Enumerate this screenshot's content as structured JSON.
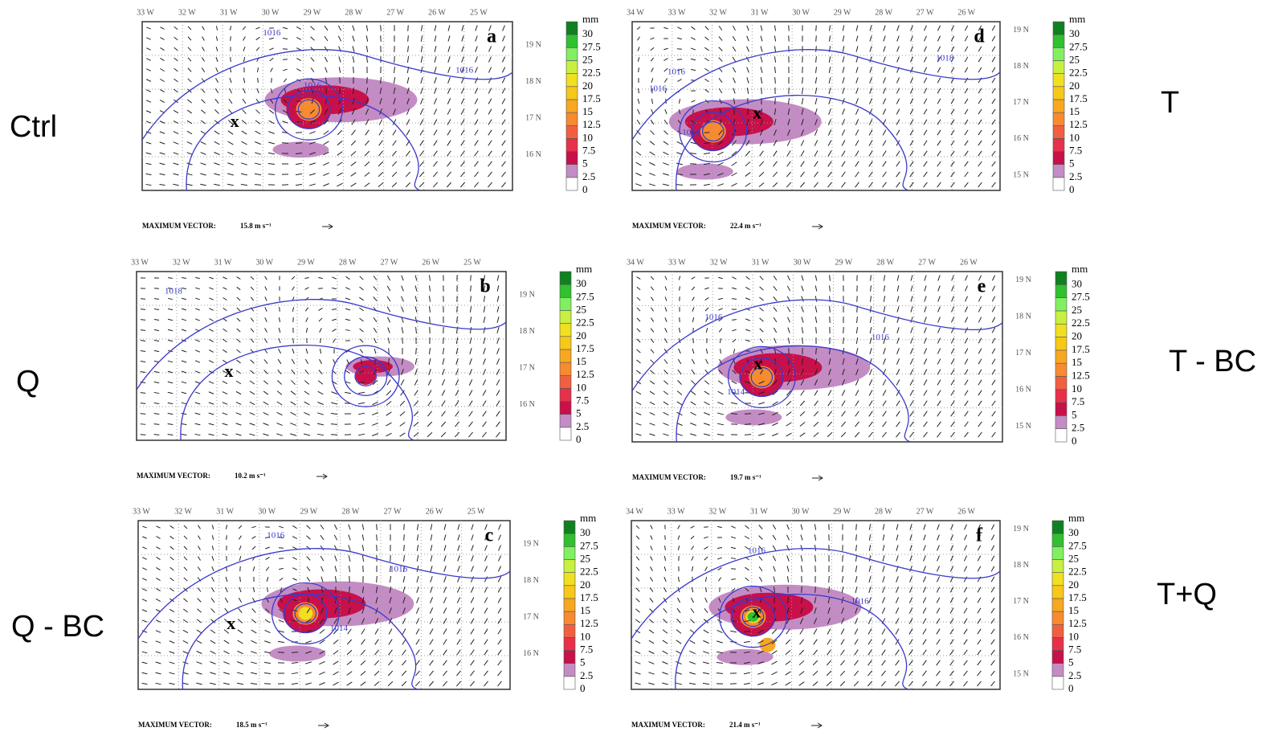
{
  "colorbar": {
    "unit": "mm",
    "levels": [
      0,
      2.5,
      5,
      7.5,
      10,
      12.5,
      15,
      17.5,
      20,
      22.5,
      25,
      27.5,
      30
    ],
    "colors": [
      "#ffffff",
      "#c48cc4",
      "#c8104a",
      "#e8304a",
      "#f06040",
      "#f88a30",
      "#f8a820",
      "#f8c818",
      "#f0e020",
      "#c8f040",
      "#80f060",
      "#30c030",
      "#108020"
    ]
  },
  "panels": [
    {
      "row_label": "Ctrl",
      "letter": "a",
      "storm_marker": "x",
      "lon_labels": [
        "33 W",
        "32 W",
        "31 W",
        "30 W",
        "29 W",
        "28 W",
        "27 W",
        "26 W",
        "25 W"
      ],
      "lat_labels": [
        "19 N",
        "18 N",
        "17 N",
        "16 N"
      ],
      "contour_labels": [
        "1016",
        "1016",
        "1016"
      ],
      "max_vector_label": "MAXIMUM VECTOR:",
      "max_vector": "15.8 m s⁻¹"
    },
    {
      "row_label": "Q",
      "letter": "b",
      "storm_marker": "x",
      "lon_labels": [
        "33 W",
        "32 W",
        "31 W",
        "30 W",
        "29 W",
        "28 W",
        "27 W",
        "26 W",
        "25 W"
      ],
      "lat_labels": [
        "19 N",
        "18 N",
        "17 N",
        "16 N"
      ],
      "contour_labels": [
        "1018"
      ],
      "max_vector_label": "MAXIMUM VECTOR:",
      "max_vector": "10.2 m s⁻¹"
    },
    {
      "row_label": "Q - BC",
      "letter": "c",
      "storm_marker": "x",
      "lon_labels": [
        "33 W",
        "32 W",
        "31 W",
        "30 W",
        "29 W",
        "28 W",
        "27 W",
        "26 W",
        "25 W"
      ],
      "lat_labels": [
        "19 N",
        "18 N",
        "17 N",
        "16 N"
      ],
      "contour_labels": [
        "1016",
        "1016",
        "1014"
      ],
      "max_vector_label": "MAXIMUM VECTOR:",
      "max_vector": "18.5 m s⁻¹"
    },
    {
      "row_label": "T",
      "letter": "d",
      "storm_marker": "x",
      "lon_labels": [
        "34 W",
        "33 W",
        "32 W",
        "31 W",
        "30 W",
        "29 W",
        "28 W",
        "27 W",
        "26 W"
      ],
      "lat_labels": [
        "19 N",
        "18 N",
        "17 N",
        "16 N",
        "15 N"
      ],
      "contour_labels": [
        "1018",
        "1016",
        "1016",
        "1014"
      ],
      "max_vector_label": "MAXIMUM VECTOR:",
      "max_vector": "22.4 m s⁻¹"
    },
    {
      "row_label": "T - BC",
      "letter": "e",
      "storm_marker": "x",
      "lon_labels": [
        "34 W",
        "33 W",
        "32 W",
        "31 W",
        "30 W",
        "29 W",
        "28 W",
        "27 W",
        "26 W"
      ],
      "lat_labels": [
        "19 N",
        "18 N",
        "17 N",
        "16 N",
        "15 N"
      ],
      "contour_labels": [
        "1016",
        "1016",
        "1014"
      ],
      "max_vector_label": "MAXIMUM VECTOR:",
      "max_vector": "19.7 m s⁻¹"
    },
    {
      "row_label": "T+Q",
      "letter": "f",
      "storm_marker": "x",
      "lon_labels": [
        "34 W",
        "33 W",
        "32 W",
        "31 W",
        "30 W",
        "29 W",
        "28 W",
        "27 W",
        "26 W"
      ],
      "lat_labels": [
        "19 N",
        "18 N",
        "17 N",
        "16 N",
        "15 N"
      ],
      "contour_labels": [
        "1016",
        "1016"
      ],
      "max_vector_label": "MAXIMUM VECTOR:",
      "max_vector": "21.4 m s⁻¹"
    }
  ]
}
